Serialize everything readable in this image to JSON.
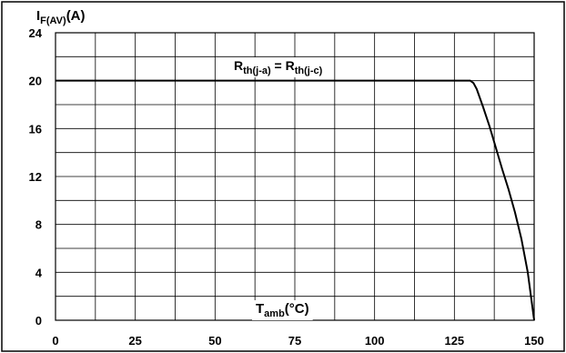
{
  "chart_data": {
    "type": "line",
    "x_ticks": [
      0,
      25,
      50,
      75,
      100,
      125,
      150
    ],
    "y_ticks": [
      0,
      4,
      8,
      12,
      16,
      20,
      24
    ],
    "xlim": [
      0,
      150
    ],
    "ylim": [
      0,
      24
    ],
    "grid": true,
    "y_axis_label": {
      "main": "I",
      "sub": "F(AV)",
      "unit": "(A)"
    },
    "x_axis_label": {
      "main": "T",
      "sub": "amb",
      "unit": "(°C)"
    },
    "annotation": {
      "left_main": "R",
      "left_sub": "th(j-a)",
      "equals": " = ",
      "right_main": "R",
      "right_sub": "th(j-c)"
    },
    "series": [
      {
        "color": "#000000",
        "x": [
          0,
          130,
          131,
          132,
          134,
          136,
          138,
          140,
          142,
          144,
          146,
          148,
          150
        ],
        "y": [
          20,
          20,
          19.8,
          19.3,
          17.8,
          16.2,
          14.4,
          12.6,
          10.9,
          9.0,
          6.8,
          4.0,
          0
        ]
      }
    ]
  }
}
